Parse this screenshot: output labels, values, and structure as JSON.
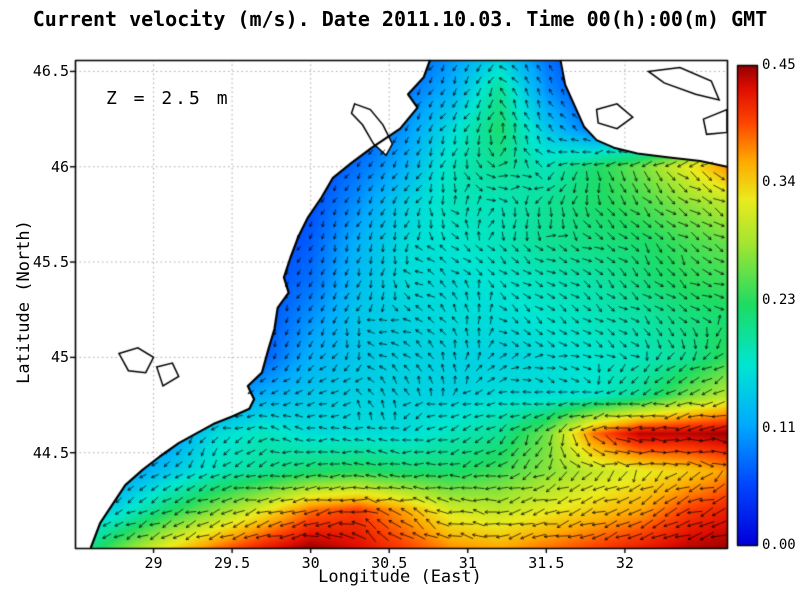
{
  "chart_data": {
    "type": "heatmap",
    "subtype": "vector_field_map",
    "title": "Current velocity (m/s). Date 2011.10.03. Time 00(h):00(m) GMT",
    "annotation": "Z = 2.5 m",
    "xlabel": "Longitude (East)",
    "ylabel": "Latitude (North)",
    "units": "m/s",
    "xlim": [
      28.5,
      32.65
    ],
    "ylim": [
      44.0,
      46.56
    ],
    "xticks": [
      29,
      29.5,
      30,
      30.5,
      31,
      31.5,
      32
    ],
    "xtick_labels": [
      "29",
      "29.5",
      "30",
      "30.5",
      "31",
      "31.5",
      "32"
    ],
    "yticks": [
      44.5,
      45,
      45.5,
      46,
      46.5
    ],
    "ytick_labels": [
      "44.5",
      "45",
      "45.5",
      "46",
      "46.5"
    ],
    "grid": "dotted",
    "colors": {
      "background": "#ffffff",
      "coastline": "#000000",
      "arrows": "#000000",
      "grid": "#aaaaaa",
      "land": "#ffffff"
    },
    "colorbar": {
      "position": "right",
      "colormap": "jet",
      "min": 0,
      "max": 0.45,
      "tick_values": [
        0,
        0.11,
        0.23,
        0.34,
        0.45
      ],
      "tick_labels": [
        "0.00",
        "0.11",
        "0.23",
        "0.34",
        "0.45"
      ]
    },
    "colormap_stops": [
      [
        0,
        0,
        0,
        220
      ],
      [
        0.125,
        0,
        70,
        255
      ],
      [
        0.25,
        0,
        170,
        255
      ],
      [
        0.375,
        0,
        230,
        210
      ],
      [
        0.5,
        30,
        220,
        100
      ],
      [
        0.625,
        160,
        230,
        50
      ],
      [
        0.72,
        235,
        235,
        30
      ],
      [
        0.8,
        255,
        170,
        0
      ],
      [
        0.88,
        255,
        70,
        0
      ],
      [
        0.95,
        225,
        15,
        0
      ],
      [
        1,
        150,
        0,
        0
      ]
    ],
    "vectors": {
      "style": "arrows",
      "color": "#000000",
      "quantity": "current direction"
    },
    "field": {
      "lon": [
        28.5,
        28.8,
        29.1,
        29.4,
        29.7,
        30.0,
        30.3,
        30.6,
        30.9,
        31.2,
        31.5,
        31.8,
        32.1,
        32.4,
        32.7
      ],
      "lat": [
        46.6,
        46.4,
        46.2,
        46.0,
        45.8,
        45.6,
        45.4,
        45.2,
        45.0,
        44.8,
        44.6,
        44.4,
        44.2,
        44.0
      ],
      "magnitude": [
        [
          0.03,
          0.03,
          0.03,
          0.03,
          0.03,
          0.04,
          0.05,
          0.06,
          0.1,
          0.14,
          0.08,
          0.04,
          0.04,
          0.04,
          0.04
        ],
        [
          0.03,
          0.03,
          0.03,
          0.03,
          0.03,
          0.04,
          0.05,
          0.08,
          0.12,
          0.2,
          0.1,
          0.05,
          0.05,
          0.05,
          0.05
        ],
        [
          0.03,
          0.03,
          0.03,
          0.03,
          0.04,
          0.05,
          0.06,
          0.1,
          0.16,
          0.22,
          0.14,
          0.08,
          0.08,
          0.1,
          0.12
        ],
        [
          0.03,
          0.03,
          0.03,
          0.04,
          0.04,
          0.05,
          0.08,
          0.12,
          0.18,
          0.2,
          0.18,
          0.22,
          0.26,
          0.32,
          0.38
        ],
        [
          0.03,
          0.03,
          0.04,
          0.04,
          0.05,
          0.06,
          0.1,
          0.15,
          0.18,
          0.18,
          0.2,
          0.22,
          0.24,
          0.27,
          0.3
        ],
        [
          0.03,
          0.04,
          0.04,
          0.05,
          0.05,
          0.07,
          0.12,
          0.16,
          0.17,
          0.18,
          0.2,
          0.21,
          0.22,
          0.24,
          0.26
        ],
        [
          0.04,
          0.04,
          0.05,
          0.05,
          0.06,
          0.08,
          0.13,
          0.16,
          0.16,
          0.17,
          0.18,
          0.19,
          0.21,
          0.23,
          0.24
        ],
        [
          0.04,
          0.05,
          0.05,
          0.06,
          0.06,
          0.1,
          0.14,
          0.15,
          0.16,
          0.16,
          0.17,
          0.18,
          0.19,
          0.21,
          0.22
        ],
        [
          0.05,
          0.05,
          0.06,
          0.06,
          0.07,
          0.12,
          0.14,
          0.15,
          0.15,
          0.15,
          0.16,
          0.17,
          0.18,
          0.2,
          0.24
        ],
        [
          0.05,
          0.06,
          0.06,
          0.08,
          0.12,
          0.14,
          0.15,
          0.15,
          0.15,
          0.16,
          0.16,
          0.17,
          0.2,
          0.26,
          0.3
        ],
        [
          0.06,
          0.08,
          0.1,
          0.16,
          0.18,
          0.16,
          0.16,
          0.16,
          0.18,
          0.2,
          0.26,
          0.38,
          0.44,
          0.44,
          0.45
        ],
        [
          0.08,
          0.1,
          0.14,
          0.18,
          0.2,
          0.22,
          0.23,
          0.22,
          0.22,
          0.24,
          0.27,
          0.3,
          0.32,
          0.34,
          0.37
        ],
        [
          0.12,
          0.16,
          0.22,
          0.27,
          0.32,
          0.38,
          0.4,
          0.36,
          0.31,
          0.3,
          0.32,
          0.34,
          0.36,
          0.4,
          0.42
        ],
        [
          0.18,
          0.26,
          0.33,
          0.38,
          0.42,
          0.45,
          0.43,
          0.4,
          0.37,
          0.36,
          0.38,
          0.4,
          0.42,
          0.44,
          0.45
        ]
      ]
    },
    "coastline": {
      "west": [
        [
          30.76,
          46.56
        ],
        [
          30.72,
          46.47
        ],
        [
          30.62,
          46.38
        ],
        [
          30.68,
          46.31
        ],
        [
          30.57,
          46.2
        ],
        [
          30.39,
          46.1
        ],
        [
          30.26,
          46.02
        ],
        [
          30.14,
          45.94
        ],
        [
          30.07,
          45.84
        ],
        [
          29.98,
          45.73
        ],
        [
          29.92,
          45.63
        ],
        [
          29.87,
          45.52
        ],
        [
          29.83,
          45.42
        ],
        [
          29.86,
          45.34
        ],
        [
          29.79,
          45.26
        ],
        [
          29.77,
          45.15
        ],
        [
          29.73,
          45.04
        ],
        [
          29.69,
          44.92
        ],
        [
          29.6,
          44.85
        ],
        [
          29.64,
          44.78
        ],
        [
          29.61,
          44.73
        ],
        [
          29.5,
          44.69
        ],
        [
          29.38,
          44.65
        ],
        [
          29.27,
          44.6
        ],
        [
          29.16,
          44.55
        ],
        [
          29.04,
          44.48
        ],
        [
          28.93,
          44.41
        ],
        [
          28.82,
          44.33
        ],
        [
          28.74,
          44.23
        ],
        [
          28.66,
          44.13
        ],
        [
          28.6,
          44.0
        ]
      ],
      "northeast": [
        [
          31.59,
          46.56
        ],
        [
          31.62,
          46.43
        ],
        [
          31.68,
          46.32
        ],
        [
          31.74,
          46.21
        ],
        [
          31.82,
          46.14
        ],
        [
          31.93,
          46.1
        ],
        [
          32.08,
          46.07
        ],
        [
          32.27,
          46.05
        ],
        [
          32.48,
          46.03
        ],
        [
          32.65,
          46.0
        ]
      ],
      "lagoons": [
        [
          [
            30.28,
            46.33
          ],
          [
            30.38,
            46.3
          ],
          [
            30.46,
            46.22
          ],
          [
            30.52,
            46.12
          ],
          [
            30.48,
            46.06
          ],
          [
            30.4,
            46.12
          ],
          [
            30.33,
            46.22
          ],
          [
            30.26,
            46.28
          ]
        ],
        [
          [
            28.78,
            45.02
          ],
          [
            28.9,
            45.05
          ],
          [
            29.0,
            45.0
          ],
          [
            28.95,
            44.92
          ],
          [
            28.84,
            44.93
          ]
        ],
        [
          [
            29.02,
            44.95
          ],
          [
            29.12,
            44.97
          ],
          [
            29.16,
            44.9
          ],
          [
            29.06,
            44.85
          ]
        ],
        [
          [
            32.15,
            46.5
          ],
          [
            32.35,
            46.52
          ],
          [
            32.55,
            46.45
          ],
          [
            32.6,
            46.35
          ],
          [
            32.45,
            46.38
          ],
          [
            32.25,
            46.44
          ]
        ],
        [
          [
            31.82,
            46.3
          ],
          [
            31.95,
            46.33
          ],
          [
            32.05,
            46.26
          ],
          [
            31.95,
            46.2
          ],
          [
            31.83,
            46.23
          ]
        ],
        [
          [
            32.5,
            46.25
          ],
          [
            32.65,
            46.3
          ],
          [
            32.65,
            46.18
          ],
          [
            32.52,
            46.17
          ]
        ]
      ]
    }
  }
}
